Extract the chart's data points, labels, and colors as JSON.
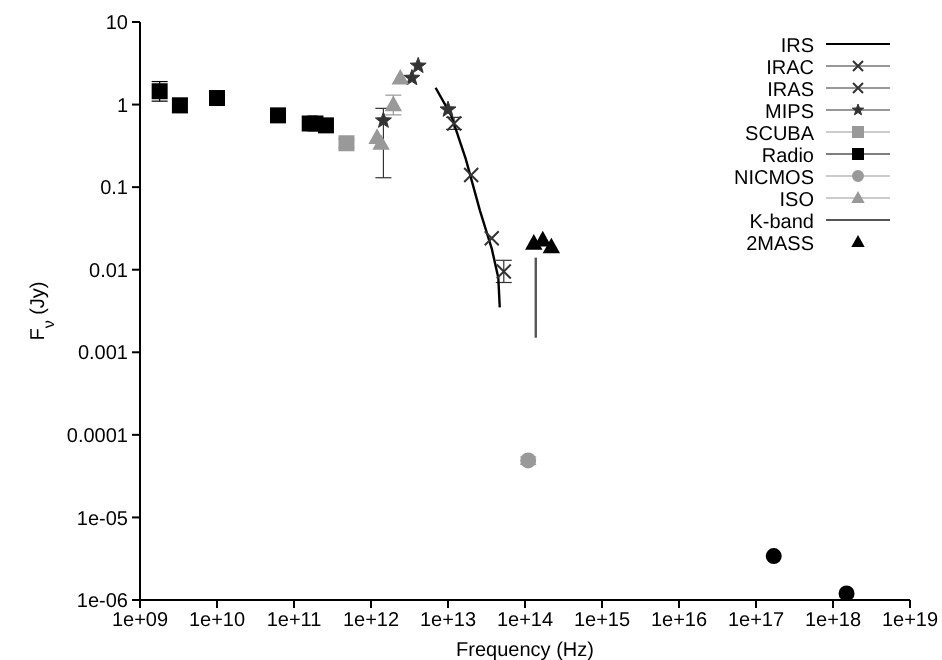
{
  "chart_data": {
    "type": "scatter",
    "xlabel": "Frequency (Hz)",
    "ylabel": "F$_{ν}$ (Jy)",
    "log": "xy",
    "grid": false,
    "legend": "top right",
    "xlim": [
      1000000000.0,
      1e+19
    ],
    "ylim": [
      1e-06,
      10
    ],
    "xticks": [
      {
        "value": 1000000000.0,
        "label": "1e+09"
      },
      {
        "value": 10000000000.0,
        "label": "1e+10"
      },
      {
        "value": 100000000000.0,
        "label": "1e+11"
      },
      {
        "value": 1000000000000.0,
        "label": "1e+12"
      },
      {
        "value": 10000000000000.0,
        "label": "1e+13"
      },
      {
        "value": 100000000000000.0,
        "label": "1e+14"
      },
      {
        "value": 1000000000000000.0,
        "label": "1e+15"
      },
      {
        "value": 1e+16,
        "label": "1e+16"
      },
      {
        "value": 1e+17,
        "label": "1e+17"
      },
      {
        "value": 1e+18,
        "label": "1e+18"
      },
      {
        "value": 1e+19,
        "label": "1e+19"
      }
    ],
    "yticks": [
      {
        "value": 1e-06,
        "label": "1e-06"
      },
      {
        "value": 1e-05,
        "label": "1e-05"
      },
      0.0001,
      0.001,
      0.01,
      0.1,
      1,
      10
    ],
    "series": [
      {
        "name": "IRS",
        "type": "line",
        "color": "#000000",
        "marker": "none",
        "x": [
          6900000000000.0,
          11000000000000.0,
          17000000000000.0,
          26000000000000.0,
          37000000000000.0,
          45000000000000.0,
          47000000000000.0
        ],
        "values": [
          1.6,
          0.74,
          0.22,
          0.052,
          0.018,
          0.008,
          0.0035
        ]
      },
      {
        "name": "IRAC",
        "color": "#333333",
        "marker": "cross",
        "x": [
          37000000000000.0,
          53000000000000.0
        ],
        "values": [
          0.024,
          0.0095
        ],
        "errors": [
          null,
          [
            0.007,
            0.013
          ]
        ]
      },
      {
        "name": "IRAS",
        "color": "#333333",
        "marker": "cross",
        "x": [
          12000000000000.0,
          20000000000000.0
        ],
        "values": [
          0.59,
          0.14
        ],
        "errors": [
          [
            0.5,
            0.7
          ],
          null
        ]
      },
      {
        "name": "MIPS",
        "color": "#333333",
        "marker": "star",
        "x": [
          1450000000000.0,
          3400000000000.0,
          4100000000000.0,
          10000000000000.0
        ],
        "values": [
          0.64,
          2.1,
          2.95,
          0.87
        ],
        "errors": [
          [
            0.13,
            0.9
          ],
          null,
          null,
          null
        ]
      },
      {
        "name": "SCUBA",
        "color": "#999999",
        "marker": "square",
        "x": [
          480000000000.0
        ],
        "values": [
          0.34
        ],
        "errors": [
          [
            0.3,
            0.38
          ]
        ]
      },
      {
        "name": "Radio",
        "color": "#000000",
        "marker": "square",
        "x": [
          1800000000.0,
          3300000000.0,
          10000000000.0,
          62000000000.0,
          160000000000.0,
          190000000000.0,
          260000000000.0
        ],
        "values": [
          1.45,
          0.98,
          1.2,
          0.74,
          0.59,
          0.59,
          0.56
        ],
        "errors": [
          [
            1.1,
            1.9
          ],
          [
            0.8,
            1.15
          ],
          null,
          null,
          null,
          null,
          null
        ]
      },
      {
        "name": "NICMOS",
        "color": "#999999",
        "marker": "circle",
        "x": [
          110000000000000.0
        ],
        "values": [
          4.9e-05
        ],
        "errors": [
          [
            4.4e-05,
            5.4e-05
          ]
        ]
      },
      {
        "name": "ISO",
        "color": "#999999",
        "marker": "triangle",
        "x": [
          1200000000000.0,
          1350000000000.0,
          1950000000000.0,
          2400000000000.0
        ],
        "values": [
          0.4,
          0.34,
          1.0,
          2.1
        ],
        "errors": [
          null,
          null,
          [
            0.75,
            1.3
          ],
          null
        ]
      },
      {
        "name": "K-band",
        "type": "line",
        "color": "#555555",
        "marker": "none",
        "x": [
          138000000000000.0,
          138000000000000.0
        ],
        "values": [
          0.014,
          0.0015
        ]
      },
      {
        "name": "2MASS",
        "color": "#000000",
        "marker": "triangle",
        "x": [
          130000000000000.0,
          170000000000000.0,
          220000000000000.0
        ],
        "values": [
          0.021,
          0.023,
          0.019
        ]
      },
      {
        "color": "#000000",
        "marker": "circle",
        "x": [
          1.7e+17,
          1.5e+18
        ],
        "values": [
          3.4e-06,
          1.2e-06
        ]
      }
    ]
  }
}
